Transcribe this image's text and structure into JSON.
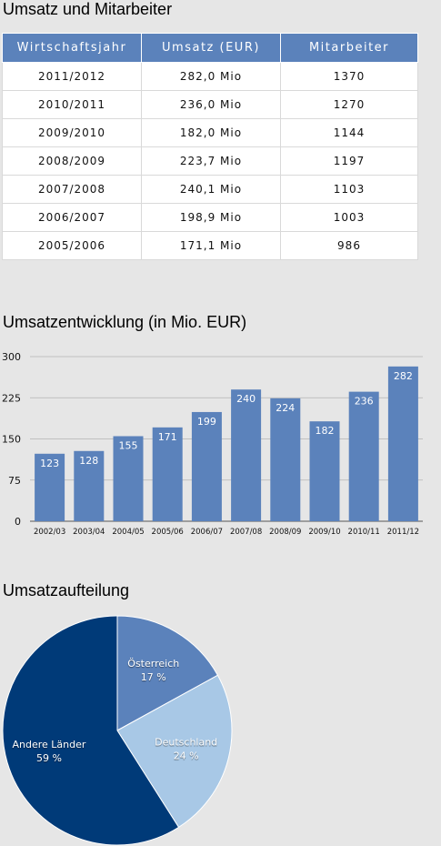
{
  "titles": {
    "table": "Umsatz und Mitarbeiter",
    "bar": "Umsatzentwicklung (in Mio. EUR)",
    "pie": "Umsatzaufteilung"
  },
  "table": {
    "headers": [
      "Wirtschaftsjahr",
      "Umsatz (EUR)",
      "Mitarbeiter"
    ],
    "rows": [
      [
        "2011/2012",
        "282,0 Mio",
        "1370"
      ],
      [
        "2010/2011",
        "236,0 Mio",
        "1270"
      ],
      [
        "2009/2010",
        "182,0 Mio",
        "1144"
      ],
      [
        "2008/2009",
        "223,7 Mio",
        "1197"
      ],
      [
        "2007/2008",
        "240,1 Mio",
        "1103"
      ],
      [
        "2006/2007",
        "198,9 Mio",
        "1003"
      ],
      [
        "2005/2006",
        "171,1 Mio",
        "986"
      ]
    ]
  },
  "colors": {
    "bar": "#5b82bb",
    "header": "#5b82bb",
    "pie_andere": "#003a78",
    "pie_oesterreich": "#5b82bb",
    "pie_deutschland": "#a8c8e6"
  },
  "chart_data": [
    {
      "type": "bar",
      "title": "Umsatzentwicklung (in Mio. EUR)",
      "categories": [
        "2002/03",
        "2003/04",
        "2004/05",
        "2005/06",
        "2006/07",
        "2007/08",
        "2008/09",
        "2009/10",
        "2010/11",
        "2011/12"
      ],
      "values": [
        123,
        128,
        155,
        171,
        199,
        240,
        224,
        182,
        236,
        282
      ],
      "ylim": [
        0,
        300
      ],
      "yticks": [
        0,
        75,
        150,
        225,
        300
      ],
      "grid": true,
      "data_labels": true
    },
    {
      "type": "pie",
      "title": "Umsatzaufteilung",
      "slices": [
        {
          "label": "Österreich",
          "value": 17,
          "value_label": "17 %"
        },
        {
          "label": "Deutschland",
          "value": 24,
          "value_label": "24 %"
        },
        {
          "label": "Andere Länder",
          "value": 59,
          "value_label": "59 %"
        }
      ],
      "start": "top",
      "direction": "clockwise"
    }
  ]
}
